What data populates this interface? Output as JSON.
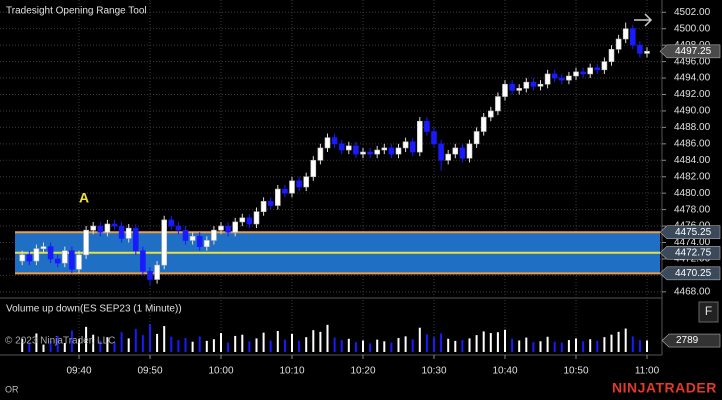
{
  "chart_data": {
    "type": "candlestick",
    "title": "Tradesight Opening Range Tool",
    "categories": [
      null,
      null,
      null,
      null,
      null,
      null,
      null,
      null,
      "09:40",
      null,
      null,
      null,
      null,
      null,
      null,
      null,
      null,
      null,
      "09:50",
      null,
      null,
      null,
      null,
      null,
      null,
      null,
      null,
      null,
      "10:00",
      null,
      null,
      null,
      null,
      null,
      null,
      null,
      null,
      null,
      "10:10",
      null,
      null,
      null,
      null,
      null,
      null,
      null,
      null,
      null,
      "10:20",
      null,
      null,
      null,
      null,
      null,
      null,
      null,
      null,
      null,
      "10:30",
      null,
      null,
      null,
      null,
      null,
      null,
      null,
      null,
      null,
      "10:40",
      null,
      null,
      null,
      null,
      null,
      null,
      null,
      null,
      null,
      "10:50",
      null,
      null,
      null,
      null,
      null,
      null,
      null,
      null,
      null,
      "11:00"
    ],
    "open": [
      4471.75,
      4472.5,
      4471.75,
      4473.25,
      4473.5,
      4472.0,
      4471.5,
      4473.0,
      4470.75,
      4472.5,
      4475.5,
      4476.0,
      4475.25,
      4476.25,
      4476.0,
      4474.5,
      4475.75,
      4473.0,
      4470.5,
      4469.5,
      4471.25,
      4476.75,
      4476.0,
      4475.5,
      4474.25,
      4474.75,
      4473.5,
      4474.25,
      4475.5,
      4476.0,
      4475.25,
      4476.5,
      4477.0,
      4476.25,
      4477.75,
      4479.0,
      4478.5,
      4480.5,
      4480.0,
      4481.5,
      4480.75,
      4482.0,
      4484.0,
      4485.5,
      4486.75,
      4486.0,
      4485.25,
      4485.75,
      4484.75,
      4485.0,
      4484.75,
      4485.25,
      4485.5,
      4484.75,
      4485.5,
      4486.25,
      4485.0,
      4488.75,
      4487.5,
      4486.0,
      4484.0,
      4484.75,
      4485.5,
      4484.25,
      4486.0,
      4487.5,
      4489.25,
      4490.0,
      4491.75,
      4493.25,
      4492.5,
      4492.75,
      4493.5,
      4493.0,
      4493.25,
      4494.5,
      4494.0,
      4493.75,
      4494.25,
      4494.75,
      4494.5,
      4495.25,
      4495.0,
      4496.0,
      4497.5,
      4498.75,
      4500.0,
      4498.0,
      4497.0
    ],
    "high": [
      4473.0,
      4473.0,
      4473.75,
      4474.0,
      4474.0,
      4472.5,
      4473.5,
      4473.5,
      4473.0,
      4476.0,
      4476.5,
      4476.5,
      4476.75,
      4476.75,
      4476.5,
      4476.25,
      4476.25,
      4473.5,
      4471.0,
      4471.75,
      4477.25,
      4477.25,
      4476.5,
      4476.0,
      4475.25,
      4475.25,
      4474.75,
      4476.0,
      4476.5,
      4476.5,
      4477.0,
      4477.5,
      4477.5,
      4478.25,
      4479.5,
      4479.5,
      4481.0,
      4481.0,
      4482.0,
      4482.0,
      4482.5,
      4484.5,
      4486.0,
      4487.25,
      4487.25,
      4486.5,
      4486.25,
      4486.25,
      4485.5,
      4485.5,
      4485.75,
      4486.0,
      4486.0,
      4486.0,
      4486.75,
      4486.75,
      4489.25,
      4489.25,
      4488.0,
      4486.5,
      4485.25,
      4486.0,
      4486.0,
      4486.5,
      4488.0,
      4489.75,
      4490.5,
      4492.25,
      4493.75,
      4493.75,
      4493.25,
      4494.0,
      4494.0,
      4493.75,
      4495.0,
      4495.0,
      4494.5,
      4494.75,
      4495.25,
      4495.25,
      4495.75,
      4495.75,
      4496.5,
      4498.0,
      4499.25,
      4500.75,
      4500.5,
      4498.5,
      4497.75
    ],
    "low": [
      4471.25,
      4471.25,
      4471.25,
      4472.75,
      4471.5,
      4471.0,
      4471.0,
      4470.25,
      4470.25,
      4472.0,
      4475.0,
      4474.75,
      4474.75,
      4475.5,
      4474.0,
      4474.0,
      4472.5,
      4470.0,
      4468.75,
      4469.0,
      4470.75,
      4475.5,
      4475.0,
      4473.75,
      4473.75,
      4473.0,
      4473.0,
      4473.75,
      4475.0,
      4474.75,
      4474.75,
      4476.0,
      4475.75,
      4475.75,
      4477.25,
      4478.0,
      4478.0,
      4479.5,
      4479.5,
      4480.25,
      4480.25,
      4481.5,
      4483.5,
      4485.0,
      4485.5,
      4484.75,
      4484.75,
      4484.25,
      4484.25,
      4484.25,
      4484.25,
      4484.75,
      4484.25,
      4484.25,
      4485.0,
      4484.5,
      4484.5,
      4487.0,
      4485.5,
      4482.75,
      4483.5,
      4484.25,
      4483.75,
      4483.75,
      4485.5,
      4487.0,
      4488.75,
      4489.5,
      4491.25,
      4492.0,
      4492.0,
      4492.25,
      4492.5,
      4492.5,
      4492.75,
      4493.5,
      4493.25,
      4493.25,
      4493.75,
      4494.0,
      4494.0,
      4494.5,
      4494.5,
      4495.5,
      4497.0,
      4498.25,
      4497.5,
      4496.5,
      4496.5
    ],
    "close": [
      4472.5,
      4471.75,
      4473.25,
      4473.5,
      4472.0,
      4471.5,
      4473.0,
      4470.75,
      4472.5,
      4475.5,
      4476.0,
      4475.25,
      4476.25,
      4476.0,
      4474.5,
      4475.75,
      4473.0,
      4470.5,
      4469.5,
      4471.25,
      4476.75,
      4476.0,
      4475.5,
      4474.25,
      4474.75,
      4473.5,
      4474.25,
      4475.5,
      4476.0,
      4475.25,
      4476.5,
      4477.0,
      4476.25,
      4477.75,
      4479.0,
      4478.5,
      4480.5,
      4480.0,
      4481.5,
      4480.75,
      4482.0,
      4484.0,
      4485.5,
      4486.75,
      4486.0,
      4485.25,
      4485.75,
      4484.75,
      4485.0,
      4484.75,
      4485.25,
      4485.5,
      4484.75,
      4485.5,
      4486.25,
      4485.0,
      4488.75,
      4487.5,
      4486.0,
      4484.0,
      4484.75,
      4485.5,
      4484.25,
      4486.0,
      4487.5,
      4489.25,
      4490.0,
      4491.75,
      4493.25,
      4492.5,
      4492.75,
      4493.5,
      4493.0,
      4493.25,
      4494.5,
      4494.0,
      4493.75,
      4494.25,
      4494.75,
      4494.5,
      4495.25,
      4495.0,
      4496.0,
      4497.5,
      4498.75,
      4500.0,
      4498.0,
      4497.0,
      4497.25
    ],
    "volume_title": "Volume up down(ES SEP23 (1 Minute))",
    "volume": [
      3200,
      2100,
      4500,
      1800,
      2600,
      3900,
      2200,
      5200,
      3100,
      6100,
      4200,
      2800,
      3600,
      2400,
      4800,
      3300,
      5600,
      4100,
      6800,
      4400,
      6300,
      3700,
      2900,
      3400,
      2500,
      3800,
      2700,
      3100,
      4600,
      2300,
      3900,
      4200,
      2600,
      3300,
      4700,
      2800,
      5100,
      3000,
      4400,
      2700,
      3600,
      5300,
      4900,
      6600,
      3500,
      2900,
      3200,
      2400,
      2800,
      2100,
      3000,
      2600,
      2300,
      3400,
      3800,
      3100,
      5900,
      4300,
      3600,
      4500,
      3200,
      2700,
      2900,
      3300,
      4100,
      5000,
      4600,
      4800,
      5400,
      3200,
      2800,
      3500,
      2400,
      2600,
      3700,
      2500,
      2300,
      2900,
      3300,
      2600,
      3100,
      2700,
      3600,
      4200,
      4900,
      5700,
      3800,
      2900,
      2789
    ],
    "up_color": "#ffffff",
    "down_color": "#1a1aff",
    "ylim": [
      4467.25,
      4503.25
    ],
    "yticks": [
      {
        "value": 4468,
        "label": "4468.00"
      },
      {
        "value": 4470,
        "label": "4470.00"
      },
      {
        "value": 4472,
        "label": "4472.00"
      },
      {
        "value": 4474,
        "label": "4474.00"
      },
      {
        "value": 4476,
        "label": "4476.00"
      },
      {
        "value": 4478,
        "label": "4478.00"
      },
      {
        "value": 4480,
        "label": "4480.00"
      },
      {
        "value": 4482,
        "label": "4482.00"
      },
      {
        "value": 4484,
        "label": "4484.00"
      },
      {
        "value": 4486,
        "label": "4486.00"
      },
      {
        "value": 4488,
        "label": "4488.00"
      },
      {
        "value": 4490,
        "label": "4490.00"
      },
      {
        "value": 4492,
        "label": "4492.00"
      },
      {
        "value": 4494,
        "label": "4494.00"
      },
      {
        "value": 4496,
        "label": "4496.00"
      },
      {
        "value": 4498,
        "label": "4498.00"
      },
      {
        "value": 4500,
        "label": "4500.00"
      },
      {
        "value": 4502,
        "label": "4502.00"
      }
    ],
    "grid": true,
    "opening_range": {
      "label": "A",
      "high": 4475.25,
      "mid": 4472.75,
      "low": 4470.25,
      "fill": "#1f6fc4",
      "edge_color": "#f0a040",
      "mid_color": "#e8e040"
    },
    "copyright": "© 2023 NinjaTrader, LLC",
    "footer": "OR",
    "brand": "NINJATRADER",
    "button": "F"
  }
}
